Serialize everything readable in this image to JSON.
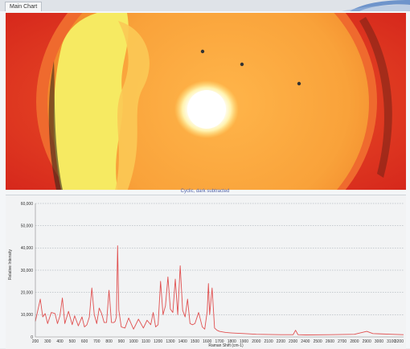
{
  "tabs": [
    {
      "label": "Main Chart"
    }
  ],
  "chart_data": {
    "type": "line",
    "title": "Cyclic, dark subtracted",
    "xlabel": "Raman Shift (cm-1)",
    "ylabel": "Relative Intensity",
    "xlim": [
      200,
      3200
    ],
    "ylim": [
      0,
      60000
    ],
    "x_ticks": [
      200,
      300,
      400,
      500,
      600,
      700,
      800,
      900,
      1000,
      1100,
      1200,
      1300,
      1400,
      1500,
      1600,
      1700,
      1800,
      1900,
      2000,
      2100,
      2200,
      2300,
      2400,
      2500,
      2600,
      2700,
      2800,
      2900,
      3000,
      3100,
      3200
    ],
    "x_tick_labels": [
      "200",
      "300",
      "400",
      "500",
      "600",
      "700",
      "800",
      "900",
      "1000",
      "1100",
      "1200",
      "1300",
      "1400",
      "1500",
      "1600",
      "1700",
      "1800",
      "1900",
      "2000",
      "2100",
      "2200",
      "2300",
      "2400",
      "2500",
      "2600",
      "2700",
      "2800",
      "2900",
      "3000",
      "3100",
      "3200"
    ],
    "y_ticks": [
      0,
      10000,
      20000,
      30000,
      40000,
      50000,
      60000
    ],
    "y_tick_labels": [
      "0",
      "10,000",
      "20,000",
      "30,000",
      "40,000",
      "50,000",
      "60,000"
    ],
    "grid": "horizontal dotted",
    "series": [
      {
        "color": "#e05050",
        "x": [
          200,
          240,
          260,
          280,
          300,
          330,
          360,
          380,
          400,
          420,
          440,
          470,
          500,
          520,
          550,
          580,
          600,
          620,
          640,
          660,
          680,
          700,
          720,
          740,
          760,
          780,
          800,
          820,
          840,
          850,
          860,
          870,
          880,
          900,
          930,
          960,
          1000,
          1040,
          1080,
          1110,
          1140,
          1160,
          1180,
          1200,
          1220,
          1240,
          1260,
          1280,
          1300,
          1320,
          1340,
          1360,
          1380,
          1400,
          1420,
          1440,
          1460,
          1480,
          1500,
          1530,
          1560,
          1580,
          1600,
          1610,
          1620,
          1640,
          1660,
          1680,
          1700,
          1750,
          1800,
          1900,
          2000,
          2100,
          2200,
          2300,
          2320,
          2340,
          2400,
          2600,
          2800,
          2900,
          2950,
          3000,
          3100,
          3200
        ],
        "y": [
          7000,
          17000,
          9000,
          10500,
          6000,
          11000,
          10500,
          6000,
          9500,
          17500,
          6000,
          11500,
          5500,
          9500,
          5000,
          9000,
          4500,
          5500,
          9000,
          22000,
          10000,
          6000,
          13000,
          10500,
          6500,
          6500,
          21000,
          6500,
          6500,
          7000,
          9000,
          41000,
          12000,
          4500,
          4000,
          8500,
          3500,
          8000,
          4000,
          7500,
          5500,
          11000,
          4500,
          5500,
          25000,
          10000,
          14000,
          27000,
          12500,
          11000,
          26000,
          10000,
          32000,
          12000,
          9000,
          17000,
          6000,
          5500,
          6000,
          11000,
          4500,
          3500,
          11500,
          24000,
          10000,
          22000,
          4000,
          3000,
          2500,
          2000,
          1800,
          1500,
          1200,
          1100,
          1000,
          1000,
          3000,
          1000,
          900,
          1000,
          1200,
          2500,
          1500,
          1400,
          1200,
          1000
        ]
      }
    ]
  }
}
